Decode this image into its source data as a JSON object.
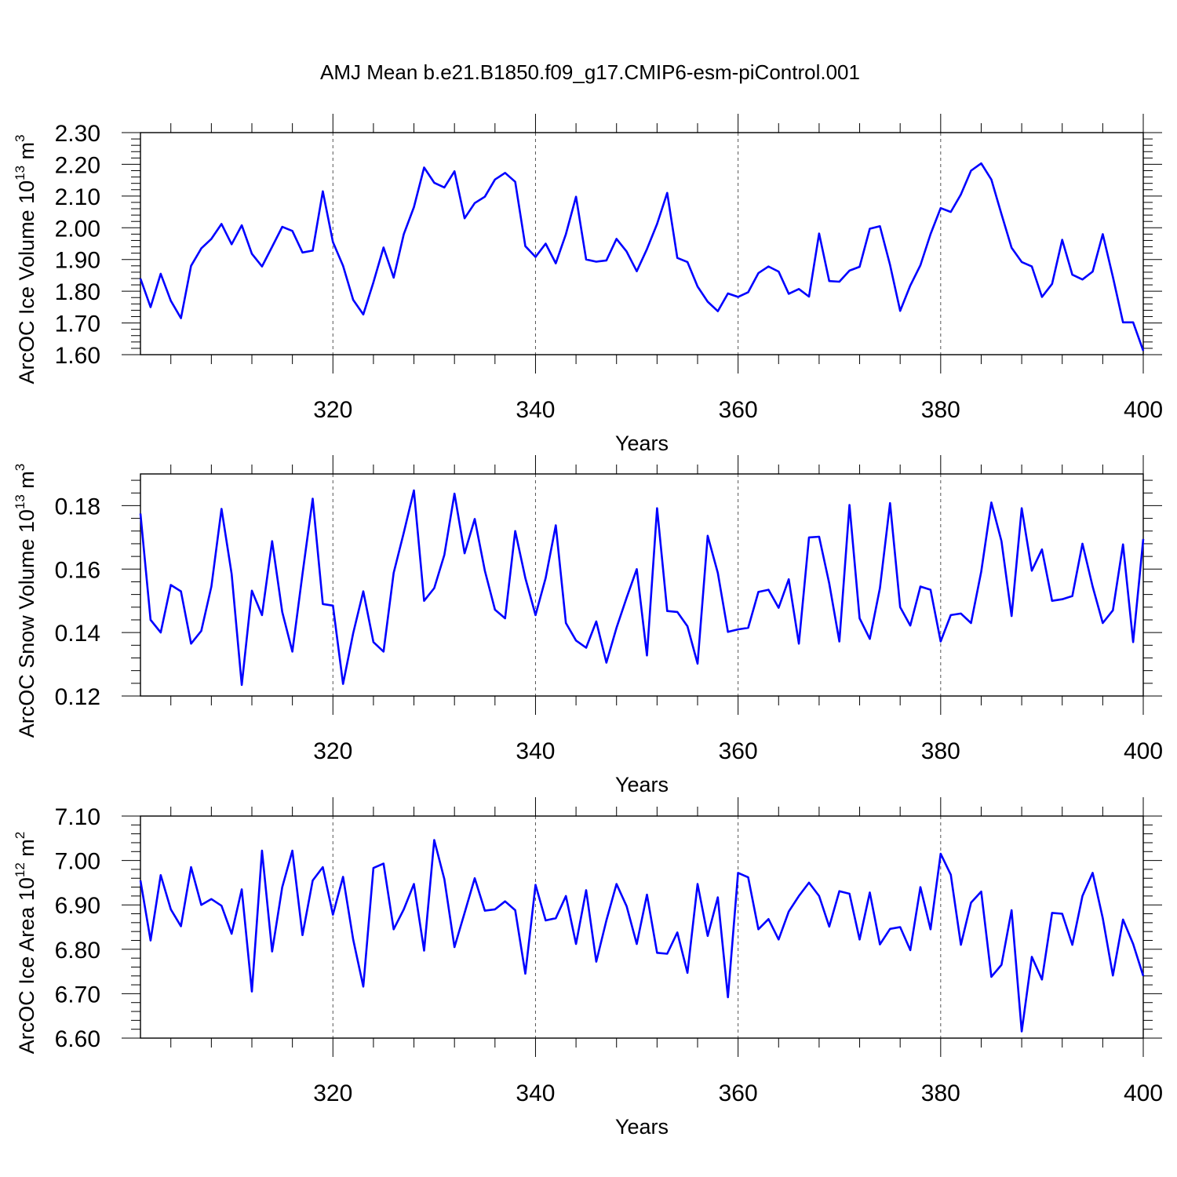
{
  "title": "AMJ Mean b.e21.B1850.f09_g17.CMIP6-esm-piControl.001",
  "colors": {
    "line": "#0000ff",
    "axis": "#000000",
    "grid": "#555555"
  },
  "chart_data": [
    {
      "type": "line",
      "name": "ice-volume",
      "ylabel": "ArcOC Ice Volume",
      "ylabel_unit_base": "10",
      "ylabel_unit_exp": "13",
      "ylabel_unit_name": "m",
      "ylabel_unit_pow": "3",
      "xlabel": "Years",
      "xlim": [
        301,
        400
      ],
      "ylim": [
        1.6,
        2.3
      ],
      "xticks": [
        320,
        340,
        360,
        380,
        400
      ],
      "xtick_labels": [
        "320",
        "340",
        "360",
        "380",
        "400"
      ],
      "yticks": [
        1.6,
        1.7,
        1.8,
        1.9,
        2.0,
        2.1,
        2.2,
        2.3
      ],
      "ytick_labels": [
        "1.60",
        "1.70",
        "1.80",
        "1.90",
        "2.00",
        "2.10",
        "2.20",
        "2.30"
      ],
      "grid": "dashed vertical at major x ticks",
      "x_start": 301,
      "values": [
        1.84,
        1.75,
        1.855,
        1.77,
        1.715,
        1.88,
        1.935,
        1.965,
        2.012,
        1.948,
        2.008,
        1.918,
        1.878,
        1.94,
        2.003,
        1.99,
        1.922,
        1.928,
        2.115,
        1.955,
        1.88,
        1.773,
        1.727,
        1.828,
        1.938,
        1.843,
        1.98,
        2.065,
        2.19,
        2.142,
        2.127,
        2.178,
        2.03,
        2.078,
        2.098,
        2.152,
        2.173,
        2.145,
        1.942,
        1.908,
        1.95,
        1.888,
        1.98,
        2.098,
        1.9,
        1.893,
        1.897,
        1.965,
        1.925,
        1.863,
        1.933,
        2.012,
        2.11,
        1.905,
        1.892,
        1.815,
        1.767,
        1.737,
        1.793,
        1.782,
        1.797,
        1.857,
        1.878,
        1.862,
        1.792,
        1.807,
        1.783,
        1.982,
        1.832,
        1.83,
        1.865,
        1.877,
        1.997,
        2.005,
        1.883,
        1.738,
        1.818,
        1.882,
        1.98,
        2.062,
        2.05,
        2.105,
        2.18,
        2.203,
        2.152,
        2.043,
        1.937,
        1.892,
        1.878,
        1.782,
        1.823,
        1.962,
        1.852,
        1.837,
        1.862,
        1.98,
        1.845,
        1.702,
        1.702,
        1.612
      ]
    },
    {
      "type": "line",
      "name": "snow-volume",
      "ylabel": "ArcOC Snow Volume",
      "ylabel_unit_base": "10",
      "ylabel_unit_exp": "13",
      "ylabel_unit_name": "m",
      "ylabel_unit_pow": "3",
      "xlabel": "Years",
      "xlim": [
        301,
        400
      ],
      "ylim": [
        0.12,
        0.19
      ],
      "xticks": [
        320,
        340,
        360,
        380,
        400
      ],
      "xtick_labels": [
        "320",
        "340",
        "360",
        "380",
        "400"
      ],
      "yticks": [
        0.12,
        0.14,
        0.16,
        0.18
      ],
      "ytick_labels": [
        "0.12",
        "0.14",
        "0.16",
        "0.18"
      ],
      "grid": "dashed vertical at major x ticks",
      "x_start": 301,
      "values": [
        0.1775,
        0.144,
        0.14,
        0.155,
        0.153,
        0.1365,
        0.1405,
        0.1545,
        0.179,
        0.1585,
        0.1235,
        0.1532,
        0.1455,
        0.1688,
        0.1465,
        0.134,
        0.1585,
        0.1822,
        0.149,
        0.1485,
        0.1238,
        0.1398,
        0.153,
        0.137,
        0.134,
        0.1588,
        0.1715,
        0.1848,
        0.15,
        0.154,
        0.1645,
        0.1838,
        0.165,
        0.1758,
        0.1595,
        0.1472,
        0.1445,
        0.172,
        0.1572,
        0.1455,
        0.1572,
        0.1738,
        0.143,
        0.1375,
        0.1352,
        0.1435,
        0.1305,
        0.1415,
        0.151,
        0.16,
        0.1328,
        0.1792,
        0.1468,
        0.1465,
        0.142,
        0.1302,
        0.1705,
        0.1588,
        0.1402,
        0.141,
        0.1415,
        0.1528,
        0.1535,
        0.1478,
        0.1568,
        0.1365,
        0.17,
        0.1702,
        0.1555,
        0.1372,
        0.1802,
        0.1445,
        0.138,
        0.154,
        0.1808,
        0.148,
        0.1422,
        0.1545,
        0.1535,
        0.1372,
        0.1455,
        0.146,
        0.143,
        0.1592,
        0.181,
        0.1688,
        0.1452,
        0.1792,
        0.1595,
        0.1662,
        0.15,
        0.1505,
        0.1515,
        0.168,
        0.1545,
        0.143,
        0.147,
        0.1678,
        0.137,
        0.1695
      ]
    },
    {
      "type": "line",
      "name": "ice-area",
      "ylabel": "ArcOC Ice Area",
      "ylabel_unit_base": "10",
      "ylabel_unit_exp": "12",
      "ylabel_unit_name": "m",
      "ylabel_unit_pow": "2",
      "xlabel": "Years",
      "xlim": [
        301,
        400
      ],
      "ylim": [
        6.6,
        7.1
      ],
      "xticks": [
        320,
        340,
        360,
        380,
        400
      ],
      "xtick_labels": [
        "320",
        "340",
        "360",
        "380",
        "400"
      ],
      "yticks": [
        6.6,
        6.7,
        6.8,
        6.9,
        7.0,
        7.1
      ],
      "ytick_labels": [
        "6.60",
        "6.70",
        "6.80",
        "6.90",
        "7.00",
        "7.10"
      ],
      "grid": "dashed vertical at major x ticks",
      "x_start": 301,
      "values": [
        6.955,
        6.82,
        6.967,
        6.89,
        6.852,
        6.985,
        6.9,
        6.913,
        6.898,
        6.835,
        6.935,
        6.705,
        7.022,
        6.795,
        6.94,
        7.022,
        6.832,
        6.955,
        6.985,
        6.878,
        6.963,
        6.822,
        6.716,
        6.983,
        6.993,
        6.845,
        6.89,
        6.947,
        6.797,
        7.046,
        6.958,
        6.805,
        6.882,
        6.96,
        6.887,
        6.89,
        6.908,
        6.888,
        6.745,
        6.945,
        6.865,
        6.87,
        6.92,
        6.812,
        6.933,
        6.772,
        6.865,
        6.947,
        6.897,
        6.812,
        6.923,
        6.792,
        6.79,
        6.838,
        6.747,
        6.947,
        6.83,
        6.917,
        6.692,
        6.972,
        6.962,
        6.845,
        6.868,
        6.822,
        6.885,
        6.92,
        6.95,
        6.92,
        6.851,
        6.931,
        6.925,
        6.822,
        6.928,
        6.811,
        6.846,
        6.85,
        6.798,
        6.94,
        6.845,
        7.015,
        6.968,
        6.81,
        6.905,
        6.93,
        6.738,
        6.765,
        6.888,
        6.615,
        6.783,
        6.732,
        6.882,
        6.88,
        6.81,
        6.92,
        6.972,
        6.87,
        6.741,
        6.867,
        6.812,
        6.74
      ]
    }
  ]
}
